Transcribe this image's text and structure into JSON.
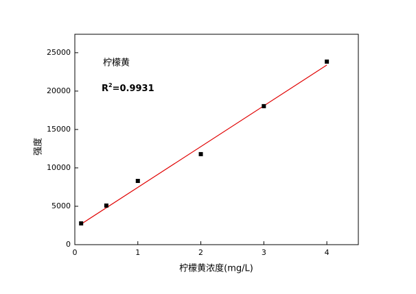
{
  "chart_data": {
    "type": "scatter",
    "x_label": "柠檬黄浓度(mg/L)",
    "y_label": "强度",
    "annotation": "柠檬黄",
    "r2": {
      "base": "R",
      "sup": "2",
      "rest": "=0.9931"
    },
    "x": [
      0.1,
      0.5,
      1,
      2,
      3,
      4
    ],
    "values": [
      2770,
      5090,
      8300,
      11790,
      18040,
      23840
    ],
    "color": "#000000",
    "fit": {
      "x": [
        0.1,
        4
      ],
      "values": [
        2680,
        23390
      ],
      "color": "#e00000"
    },
    "xlim": [
      0,
      4.5
    ],
    "ylim": [
      0,
      27400
    ],
    "xticks": [
      0,
      1,
      2,
      3,
      4
    ],
    "yticks": [
      0,
      5000,
      10000,
      15000,
      20000,
      25000
    ]
  }
}
